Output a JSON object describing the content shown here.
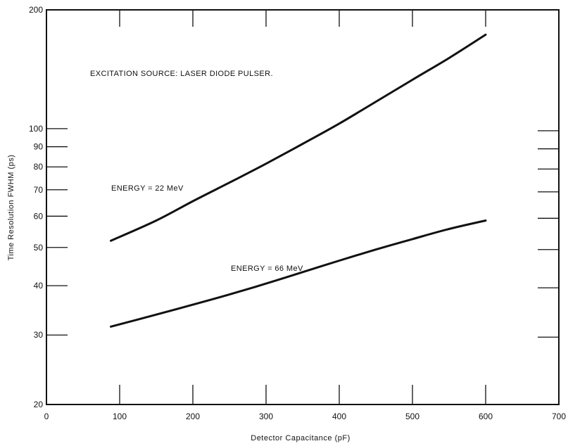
{
  "chart_data": {
    "type": "line",
    "title": "",
    "xlabel": "Detector Capacitance (pF)",
    "ylabel": "Time Resolution FWHM (ps)",
    "xlim": [
      0,
      700
    ],
    "ylim": [
      20,
      200
    ],
    "yscale": "log",
    "grid": false,
    "x_ticks": [
      0,
      100,
      200,
      300,
      400,
      500,
      600,
      700
    ],
    "y_ticks": [
      20,
      30,
      40,
      50,
      60,
      70,
      80,
      90,
      100,
      200
    ],
    "annotation": "EXCITATION SOURCE:  LASER DIODE PULSER.",
    "series": [
      {
        "name": "ENERGY = 22 MeV",
        "x": [
          88,
          150,
          200,
          250,
          300,
          350,
          400,
          450,
          500,
          550,
          600
        ],
        "y": [
          52,
          58.5,
          65.5,
          73,
          81.5,
          91.5,
          103,
          117,
          133,
          151,
          173
        ]
      },
      {
        "name": "ENERGY = 66 MeV",
        "x": [
          88,
          150,
          200,
          250,
          300,
          350,
          400,
          450,
          500,
          550,
          600
        ],
        "y": [
          31.5,
          33.8,
          35.8,
          38,
          40.5,
          43.3,
          46.3,
          49.4,
          52.5,
          55.7,
          58.5
        ]
      }
    ]
  }
}
